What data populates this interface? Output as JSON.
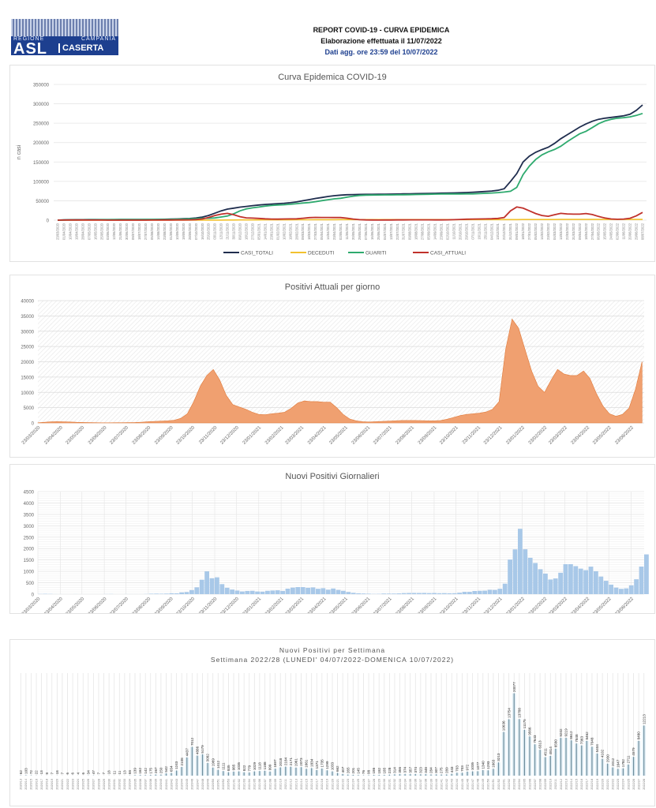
{
  "header": {
    "logo_text": [
      "REGIONE",
      "CAMPANIA",
      "ASL",
      "CASERTA"
    ],
    "title": "REPORT COVID-19 - CURVA EPIDEMICA",
    "elaboration": "Elaborazione effettuata il 11/07/2022",
    "updated": "Dati agg. ore 23:59 del 10/07/2022"
  },
  "chart_data": [
    {
      "type": "line",
      "title": "Curva Epidemica COVID-19",
      "ylabel": "n casi",
      "ylim": [
        0,
        350000
      ],
      "yticks": [
        "0",
        "50000",
        "100000",
        "150000",
        "200000",
        "250000",
        "300000",
        "350000"
      ],
      "grid": "horizontal",
      "legend": "bottom",
      "x": [
        "23/03/2020",
        "01/04/2020",
        "10/04/2020",
        "19/04/2020",
        "28/04/2020",
        "07/05/2020",
        "16/05/2020",
        "25/05/2020",
        "03/06/2020",
        "12/06/2020",
        "21/06/2020",
        "30/06/2020",
        "09/07/2020",
        "18/07/2020",
        "27/07/2020",
        "05/08/2020",
        "14/08/2020",
        "23/08/2020",
        "01/09/2020",
        "10/09/2020",
        "19/09/2020",
        "28/09/2020",
        "07/10/2020",
        "16/10/2020",
        "25/10/2020",
        "03/11/2020",
        "12/11/2020",
        "21/11/2020",
        "30/11/2020",
        "09/12/2020",
        "18/12/2020",
        "27/12/2020",
        "05/01/2021",
        "14/01/2021",
        "23/01/2021",
        "01/02/2021",
        "10/02/2021",
        "19/02/2021",
        "28/02/2021",
        "09/03/2021",
        "18/03/2021",
        "27/03/2021",
        "05/04/2021",
        "14/04/2021",
        "23/04/2021",
        "02/05/2021",
        "11/05/2021",
        "20/05/2021",
        "29/05/2021",
        "07/06/2021",
        "16/06/2021",
        "25/06/2021",
        "04/07/2021",
        "13/07/2021",
        "22/07/2021",
        "31/07/2021",
        "09/08/2021",
        "18/08/2021",
        "27/08/2021",
        "05/09/2021",
        "14/09/2021",
        "23/09/2021",
        "02/10/2021",
        "11/10/2021",
        "20/10/2021",
        "29/10/2021",
        "07/11/2021",
        "16/11/2021",
        "25/11/2021",
        "04/12/2021",
        "13/12/2021",
        "22/12/2021",
        "31/12/2021",
        "09/01/2022",
        "18/01/2022",
        "27/01/2022",
        "05/02/2022",
        "14/02/2022",
        "23/02/2022",
        "04/03/2022",
        "13/03/2022",
        "22/03/2022",
        "31/03/2022",
        "09/04/2022",
        "18/04/2022",
        "27/04/2022",
        "06/05/2022",
        "15/05/2022",
        "24/05/2022",
        "02/06/2022",
        "11/06/2022",
        "20/06/2022",
        "29/06/2022",
        "08/07/2022"
      ],
      "series": [
        {
          "name": "CASI_TOTALI",
          "color": "#1f2d4e",
          "values": [
            100,
            600,
            1000,
            1200,
            1300,
            1350,
            1400,
            1450,
            1500,
            1520,
            1550,
            1580,
            1620,
            1680,
            1750,
            1850,
            2000,
            2300,
            2700,
            3100,
            3600,
            4300,
            5500,
            8000,
            12000,
            18000,
            24000,
            28500,
            31000,
            33500,
            35500,
            37500,
            39000,
            40500,
            41500,
            42500,
            43500,
            45000,
            47000,
            50000,
            53000,
            56000,
            58500,
            61000,
            63000,
            64500,
            65500,
            66000,
            66300,
            66500,
            66600,
            66700,
            66900,
            67100,
            67400,
            67700,
            68000,
            68300,
            68600,
            68900,
            69200,
            69500,
            69800,
            70200,
            70700,
            71300,
            72000,
            72800,
            73800,
            75000,
            77000,
            81000,
            100000,
            120000,
            150000,
            165000,
            175000,
            182000,
            188000,
            198000,
            210000,
            220000,
            230000,
            240000,
            248000,
            255000,
            260000,
            263000,
            265000,
            267000,
            269000,
            273000,
            283000,
            297000
          ]
        },
        {
          "name": "DECEDUTI",
          "color": "#f2c12e",
          "values": [
            5,
            40,
            70,
            90,
            100,
            105,
            108,
            110,
            110,
            110,
            110,
            110,
            110,
            111,
            112,
            113,
            115,
            118,
            120,
            123,
            127,
            132,
            140,
            155,
            180,
            220,
            280,
            350,
            430,
            510,
            580,
            640,
            690,
            740,
            780,
            820,
            860,
            900,
            950,
            1000,
            1060,
            1130,
            1200,
            1260,
            1310,
            1350,
            1370,
            1380,
            1385,
            1390,
            1393,
            1395,
            1397,
            1399,
            1401,
            1403,
            1406,
            1409,
            1412,
            1415,
            1418,
            1421,
            1424,
            1428,
            1432,
            1437,
            1442,
            1448,
            1455,
            1462,
            1470,
            1480,
            1495,
            1520,
            1560,
            1600,
            1640,
            1670,
            1695,
            1715,
            1735,
            1755,
            1775,
            1795,
            1815,
            1835,
            1850,
            1860,
            1868,
            1874,
            1880,
            1886,
            1893,
            1900
          ]
        },
        {
          "name": "GUARITI",
          "color": "#2eaa6e",
          "values": [
            45,
            360,
            580,
            710,
            850,
            945,
            1090,
            1190,
            1290,
            1330,
            1380,
            1410,
            1440,
            1490,
            1540,
            1590,
            1640,
            1780,
            2080,
            2380,
            2770,
            3270,
            3860,
            4850,
            4850,
            5780,
            8220,
            10650,
            16570,
            23990,
            28920,
            31660,
            33810,
            36260,
            37920,
            38980,
            39640,
            40900,
            42550,
            44200,
            45440,
            47670,
            50300,
            52740,
            54890,
            56350,
            59130,
            61820,
            63620,
            64410,
            64810,
            65010,
            65100,
            65200,
            65400,
            65600,
            65790,
            66090,
            66390,
            66740,
            67080,
            67380,
            67580,
            67600,
            67650,
            67700,
            67760,
            68350,
            69150,
            69940,
            71030,
            72520,
            74510,
            84480,
            117440,
            139400,
            156360,
            168330,
            176310,
            182290,
            190770,
            202250,
            212730,
            222710,
            229190,
            238670,
            248650,
            255640,
            260130,
            262930,
            264320,
            266310,
            270110,
            275100
          ]
        },
        {
          "name": "CASI_ATTUALI",
          "color": "#c0312b",
          "values": [
            50,
            200,
            350,
            400,
            350,
            300,
            200,
            150,
            100,
            80,
            60,
            60,
            70,
            80,
            100,
            150,
            250,
            400,
            500,
            600,
            700,
            900,
            1500,
            3000,
            7000,
            12000,
            15500,
            17500,
            14000,
            9000,
            6000,
            5200,
            4500,
            3500,
            2800,
            2700,
            3000,
            3200,
            3500,
            4800,
            6500,
            7200,
            7000,
            7000,
            6800,
            6800,
            5000,
            2800,
            1300,
            700,
            400,
            300,
            400,
            500,
            600,
            700,
            800,
            800,
            800,
            750,
            700,
            700,
            800,
            1200,
            1800,
            2400,
            2800,
            3000,
            3200,
            3600,
            4500,
            7000,
            24000,
            34000,
            31000,
            24000,
            17000,
            12000,
            10000,
            14000,
            17500,
            16000,
            15500,
            15500,
            17000,
            14500,
            9500,
            5500,
            3000,
            2200,
            2800,
            4800,
            11000,
            20000
          ]
        }
      ]
    },
    {
      "type": "area",
      "title": "Positivi Attuali per giorno",
      "ylim": [
        0,
        40000
      ],
      "yticks": [
        "0",
        "5000",
        "10000",
        "15000",
        "20000",
        "25000",
        "30000",
        "35000",
        "40000"
      ],
      "xticks": [
        "23/03/2020",
        "23/04/2020",
        "23/05/2020",
        "23/06/2020",
        "23/07/2020",
        "23/08/2020",
        "23/09/2020",
        "23/10/2020",
        "23/11/2020",
        "23/12/2020",
        "23/01/2021",
        "23/02/2021",
        "23/03/2021",
        "23/04/2021",
        "23/05/2021",
        "23/06/2021",
        "23/07/2021",
        "23/08/2021",
        "23/09/2021",
        "23/10/2021",
        "23/11/2021",
        "23/12/2021",
        "23/01/2022",
        "23/02/2022",
        "23/03/2022",
        "23/04/2022",
        "23/05/2022",
        "23/06/2022"
      ],
      "color": "#f0a070",
      "grid": "horizontal",
      "series_ref": "CASI_ATTUALI"
    },
    {
      "type": "bar",
      "title": "Nuovi Positivi Giornalieri",
      "ylim": [
        0,
        4500
      ],
      "yticks": [
        "0",
        "500",
        "1000",
        "1500",
        "2000",
        "2500",
        "3000",
        "3500",
        "4000",
        "4500"
      ],
      "xticks": [
        "23/03/2020",
        "23/04/2020",
        "23/05/2020",
        "23/06/2020",
        "23/07/2020",
        "23/08/2020",
        "23/09/2020",
        "23/10/2020",
        "23/11/2020",
        "23/12/2020",
        "23/01/2021",
        "23/02/2021",
        "23/03/2021",
        "23/04/2021",
        "23/05/2021",
        "23/06/2021",
        "23/07/2021",
        "23/08/2021",
        "23/09/2021",
        "23/10/2021",
        "23/11/2021",
        "23/12/2021",
        "23/01/2022",
        "23/02/2022",
        "23/03/2022",
        "23/04/2022",
        "23/05/2022",
        "23/06/2022"
      ],
      "color": "#a8c8e8",
      "grid": "both",
      "values": [
        9,
        15,
        10,
        3,
        2,
        1,
        1,
        3,
        1,
        1,
        1,
        1,
        1,
        5,
        7,
        1,
        1,
        3,
        2,
        2,
        2,
        8,
        20,
        23,
        20,
        25,
        38,
        36,
        77,
        93,
        178,
        301,
        634,
        1002,
        698,
        740,
        440,
        281,
        202,
        159,
        119,
        141,
        148,
        117,
        111,
        147,
        160,
        170,
        143,
        242,
        288,
        312,
        310,
        280,
        296,
        237,
        262,
        196,
        248,
        186,
        148,
        95,
        58,
        38,
        29,
        21,
        11,
        14,
        27,
        26,
        26,
        33,
        45,
        51,
        53,
        51,
        53,
        46,
        50,
        41,
        44,
        39,
        41,
        63,
        100,
        100,
        139,
        148,
        154,
        191,
        185,
        238,
        459,
        1519,
        1965,
        2868,
        1970,
        1596,
        1367,
        1092,
        902,
        644,
        688,
        940,
        1315,
        1317,
        1230,
        1121,
        1052,
        1209,
        1007,
        772,
        586,
        419,
        287,
        235,
        255,
        387,
        654,
        1211,
        1745
      ]
    },
    {
      "type": "bar",
      "title": "Nuovi Positivi per Settimana",
      "subtitle": "Settimana 2022/28 (LUNEDI' 04/07/2022-DOMENICA 10/07/2022)",
      "color": "#6d8d9c",
      "categories": [
        "2020/13",
        "2020/14",
        "2020/15",
        "2020/16",
        "2020/17",
        "2020/18",
        "2020/19",
        "2020/20",
        "2020/21",
        "2020/22",
        "2020/23",
        "2020/24",
        "2020/25",
        "2020/26",
        "2020/27",
        "2020/28",
        "2020/29",
        "2020/30",
        "2020/31",
        "2020/32",
        "2020/33",
        "2020/34",
        "2020/35",
        "2020/36",
        "2020/37",
        "2020/38",
        "2020/39",
        "2020/40",
        "2020/41",
        "2020/42",
        "2020/43",
        "2020/44",
        "2020/45",
        "2020/46",
        "2020/47",
        "2020/48",
        "2020/49",
        "2020/50",
        "2020/51",
        "2020/52",
        "2020/53",
        "2021/01",
        "2021/02",
        "2021/03",
        "2021/04",
        "2021/05",
        "2021/06",
        "2021/07",
        "2021/08",
        "2021/09",
        "2021/10",
        "2021/11",
        "2021/12",
        "2021/13",
        "2021/14",
        "2021/15",
        "2021/16",
        "2021/17",
        "2021/18",
        "2021/19",
        "2021/20",
        "2021/21",
        "2021/22",
        "2021/23",
        "2021/24",
        "2021/25",
        "2021/26",
        "2021/27",
        "2021/28",
        "2021/29",
        "2021/30",
        "2021/31",
        "2021/32",
        "2021/33",
        "2021/34",
        "2021/35",
        "2021/36",
        "2021/37",
        "2021/38",
        "2021/39",
        "2021/40",
        "2021/41",
        "2021/42",
        "2021/43",
        "2021/44",
        "2021/45",
        "2021/46",
        "2021/47",
        "2021/48",
        "2021/49",
        "2021/50",
        "2021/51",
        "2021/52",
        "2022/01",
        "2022/02",
        "2022/03",
        "2022/04",
        "2022/05",
        "2022/06",
        "2022/07",
        "2022/08",
        "2022/09",
        "2022/10",
        "2022/11",
        "2022/12",
        "2022/13",
        "2022/14",
        "2022/15",
        "2022/16",
        "2022/17",
        "2022/18",
        "2022/19",
        "2022/20",
        "2022/21",
        "2022/22",
        "2022/23",
        "2022/24",
        "2022/25",
        "2022/26",
        "2022/27",
        "2022/28"
      ],
      "values": [
        62,
        103,
        72,
        22,
        13,
        8,
        7,
        18,
        7,
        6,
        6,
        4,
        6,
        34,
        47,
        7,
        7,
        18,
        11,
        11,
        13,
        58,
        139,
        162,
        142,
        175,
        267,
        250,
        542,
        654,
        1243,
        2108,
        4437,
        7012,
        4886,
        5179,
        3082,
        1969,
        1412,
        1111,
        835,
        985,
        1035,
        822,
        779,
        1029,
        1118,
        1188,
        999,
        1697,
        2018,
        2184,
        2171,
        1961,
        2073,
        1661,
        1834,
        1371,
        1735,
        1299,
        1033,
        662,
        407,
        265,
        201,
        145,
        76,
        98,
        186,
        182,
        185,
        228,
        314,
        356,
        374,
        357,
        374,
        323,
        348,
        284,
        307,
        275,
        289,
        443,
        703,
        703,
        972,
        1035,
        1077,
        1340,
        1293,
        1663,
        3213,
        10636,
        13754,
        20077,
        13788,
        11175,
        9566,
        7643,
        6313,
        4511,
        4814,
        6580,
        9202,
        9219,
        8612,
        7848,
        7363,
        8462,
        7048,
        5404,
        4102,
        2930,
        2012,
        1647,
        1782,
        2711,
        4579,
        8480,
        12213
      ],
      "data_labels": true,
      "grid": "vertical"
    }
  ]
}
